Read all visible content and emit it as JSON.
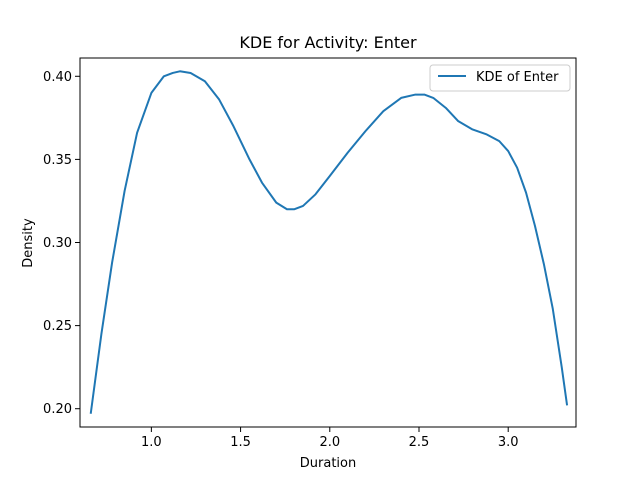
{
  "chart_data": {
    "type": "line",
    "title": "KDE for Activity: Enter",
    "xlabel": "Duration",
    "ylabel": "Density",
    "xlim": [
      0.6,
      3.38
    ],
    "ylim": [
      0.189,
      0.411
    ],
    "xticks": [
      1.0,
      1.5,
      2.0,
      2.5,
      3.0
    ],
    "xtick_labels": [
      "1.0",
      "1.5",
      "2.0",
      "2.5",
      "3.0"
    ],
    "yticks": [
      0.2,
      0.25,
      0.3,
      0.35,
      0.4
    ],
    "ytick_labels": [
      "0.20",
      "0.25",
      "0.30",
      "0.35",
      "0.40"
    ],
    "grid": false,
    "legend_position": "top-right",
    "series": [
      {
        "name": "KDE of Enter",
        "color": "#1f77b4",
        "x": [
          0.66,
          0.72,
          0.78,
          0.85,
          0.92,
          1.0,
          1.07,
          1.12,
          1.16,
          1.22,
          1.3,
          1.38,
          1.46,
          1.55,
          1.62,
          1.7,
          1.76,
          1.8,
          1.85,
          1.92,
          2.0,
          2.1,
          2.2,
          2.3,
          2.4,
          2.48,
          2.53,
          2.58,
          2.65,
          2.72,
          2.8,
          2.88,
          2.95,
          3.0,
          3.05,
          3.1,
          3.15,
          3.2,
          3.25,
          3.3,
          3.33
        ],
        "y": [
          0.197,
          0.245,
          0.288,
          0.331,
          0.366,
          0.39,
          0.4,
          0.402,
          0.403,
          0.402,
          0.397,
          0.386,
          0.37,
          0.35,
          0.336,
          0.324,
          0.32,
          0.32,
          0.322,
          0.329,
          0.34,
          0.354,
          0.367,
          0.379,
          0.387,
          0.389,
          0.389,
          0.387,
          0.381,
          0.373,
          0.368,
          0.365,
          0.361,
          0.355,
          0.345,
          0.33,
          0.31,
          0.287,
          0.26,
          0.225,
          0.202
        ]
      }
    ]
  }
}
